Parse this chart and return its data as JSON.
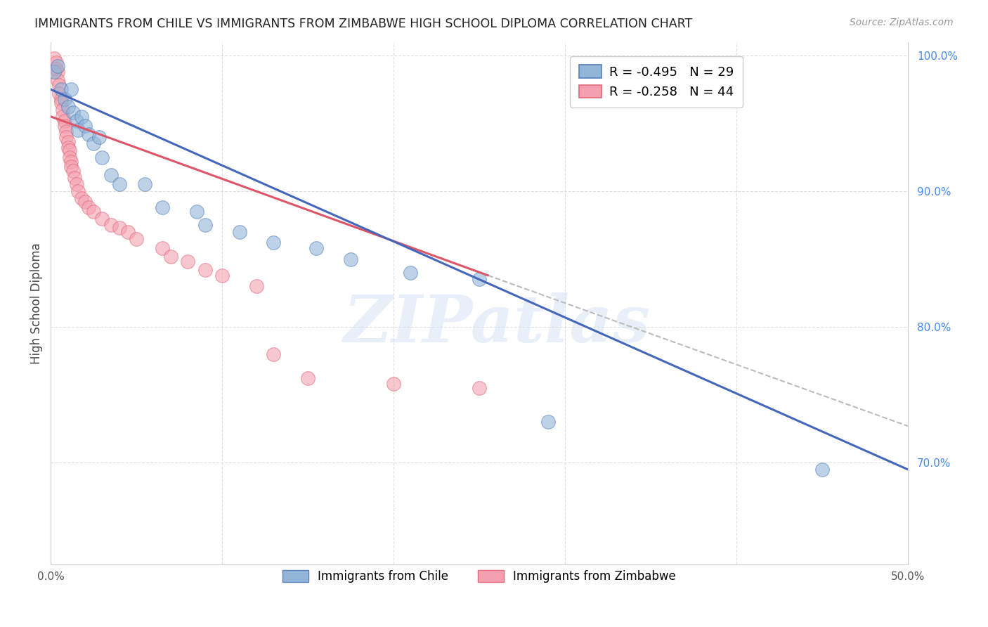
{
  "title": "IMMIGRANTS FROM CHILE VS IMMIGRANTS FROM ZIMBABWE HIGH SCHOOL DIPLOMA CORRELATION CHART",
  "source": "Source: ZipAtlas.com",
  "ylabel": "High School Diploma",
  "x_min": 0.0,
  "x_max": 0.5,
  "y_min": 0.625,
  "y_max": 1.01,
  "y_ticks_right": [
    0.7,
    0.8,
    0.9,
    1.0
  ],
  "y_tick_labels_right": [
    "70.0%",
    "80.0%",
    "90.0%",
    "100.0%"
  ],
  "legend_chile_r": "R = -0.495",
  "legend_chile_n": "N = 29",
  "legend_zimbabwe_r": "R = -0.258",
  "legend_zimbabwe_n": "N = 44",
  "chile_color": "#92b4d8",
  "zimbabwe_color": "#f4a0b0",
  "chile_edge_color": "#5580bb",
  "zimbabwe_edge_color": "#e06878",
  "chile_trend_color": "#4466bb",
  "zimbabwe_trend_color": "#dd5566",
  "watermark": "ZIPatlas",
  "chile_scatter": [
    [
      0.002,
      0.988
    ],
    [
      0.004,
      0.992
    ],
    [
      0.006,
      0.975
    ],
    [
      0.008,
      0.968
    ],
    [
      0.01,
      0.962
    ],
    [
      0.012,
      0.975
    ],
    [
      0.013,
      0.958
    ],
    [
      0.015,
      0.952
    ],
    [
      0.016,
      0.945
    ],
    [
      0.018,
      0.955
    ],
    [
      0.02,
      0.948
    ],
    [
      0.022,
      0.942
    ],
    [
      0.025,
      0.935
    ],
    [
      0.028,
      0.94
    ],
    [
      0.03,
      0.925
    ],
    [
      0.035,
      0.912
    ],
    [
      0.04,
      0.905
    ],
    [
      0.055,
      0.905
    ],
    [
      0.065,
      0.888
    ],
    [
      0.085,
      0.885
    ],
    [
      0.09,
      0.875
    ],
    [
      0.11,
      0.87
    ],
    [
      0.13,
      0.862
    ],
    [
      0.155,
      0.858
    ],
    [
      0.175,
      0.85
    ],
    [
      0.21,
      0.84
    ],
    [
      0.25,
      0.835
    ],
    [
      0.29,
      0.73
    ],
    [
      0.45,
      0.695
    ]
  ],
  "zimbabwe_scatter": [
    [
      0.002,
      0.998
    ],
    [
      0.003,
      0.995
    ],
    [
      0.003,
      0.99
    ],
    [
      0.004,
      0.988
    ],
    [
      0.004,
      0.982
    ],
    [
      0.005,
      0.978
    ],
    [
      0.005,
      0.972
    ],
    [
      0.006,
      0.968
    ],
    [
      0.006,
      0.965
    ],
    [
      0.007,
      0.96
    ],
    [
      0.007,
      0.955
    ],
    [
      0.008,
      0.952
    ],
    [
      0.008,
      0.948
    ],
    [
      0.009,
      0.944
    ],
    [
      0.009,
      0.94
    ],
    [
      0.01,
      0.936
    ],
    [
      0.01,
      0.932
    ],
    [
      0.011,
      0.93
    ],
    [
      0.011,
      0.925
    ],
    [
      0.012,
      0.922
    ],
    [
      0.012,
      0.918
    ],
    [
      0.013,
      0.915
    ],
    [
      0.014,
      0.91
    ],
    [
      0.015,
      0.905
    ],
    [
      0.016,
      0.9
    ],
    [
      0.018,
      0.895
    ],
    [
      0.02,
      0.892
    ],
    [
      0.022,
      0.888
    ],
    [
      0.025,
      0.885
    ],
    [
      0.03,
      0.88
    ],
    [
      0.035,
      0.875
    ],
    [
      0.04,
      0.873
    ],
    [
      0.045,
      0.87
    ],
    [
      0.05,
      0.865
    ],
    [
      0.065,
      0.858
    ],
    [
      0.07,
      0.852
    ],
    [
      0.08,
      0.848
    ],
    [
      0.09,
      0.842
    ],
    [
      0.1,
      0.838
    ],
    [
      0.12,
      0.83
    ],
    [
      0.13,
      0.78
    ],
    [
      0.15,
      0.762
    ],
    [
      0.2,
      0.758
    ],
    [
      0.25,
      0.755
    ]
  ],
  "chile_trend_x": [
    0.0,
    0.5
  ],
  "chile_trend_y": [
    0.975,
    0.695
  ],
  "zimbabwe_trend_x": [
    0.0,
    0.255
  ],
  "zimbabwe_trend_y": [
    0.955,
    0.838
  ],
  "dashed_line_x": [
    0.255,
    0.5
  ],
  "dashed_line_y": [
    0.838,
    0.727
  ]
}
